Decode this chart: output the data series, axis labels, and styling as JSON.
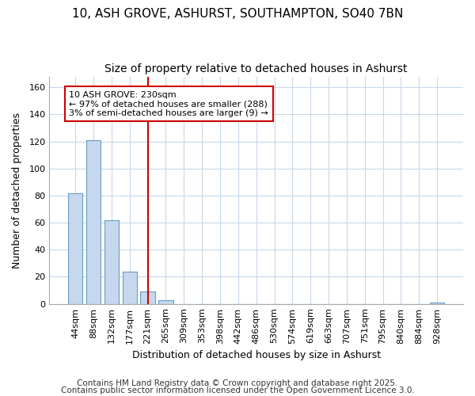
{
  "title1": "10, ASH GROVE, ASHURST, SOUTHAMPTON, SO40 7BN",
  "title2": "Size of property relative to detached houses in Ashurst",
  "xlabel": "Distribution of detached houses by size in Ashurst",
  "ylabel": "Number of detached properties",
  "categories": [
    "44sqm",
    "88sqm",
    "132sqm",
    "177sqm",
    "221sqm",
    "265sqm",
    "309sqm",
    "353sqm",
    "398sqm",
    "442sqm",
    "486sqm",
    "530sqm",
    "574sqm",
    "619sqm",
    "663sqm",
    "707sqm",
    "751sqm",
    "795sqm",
    "840sqm",
    "884sqm",
    "928sqm"
  ],
  "values": [
    82,
    121,
    62,
    24,
    9,
    3,
    0,
    0,
    0,
    0,
    0,
    0,
    0,
    0,
    0,
    0,
    0,
    0,
    0,
    0,
    1
  ],
  "bar_color": "#c5d8ed",
  "bar_edge_color": "#6a9ec5",
  "vline_x_index": 4,
  "vline_color": "#cc0000",
  "annotation_text": "10 ASH GROVE: 230sqm\n← 97% of detached houses are smaller (288)\n3% of semi-detached houses are larger (9) →",
  "annotation_box_edgecolor": "#cc0000",
  "annotation_box_facecolor": "#ffffff",
  "ylim": [
    0,
    168
  ],
  "yticks": [
    0,
    20,
    40,
    60,
    80,
    100,
    120,
    140,
    160
  ],
  "footer1": "Contains HM Land Registry data © Crown copyright and database right 2025.",
  "footer2": "Contains public sector information licensed under the Open Government Licence 3.0.",
  "bg_color": "#ffffff",
  "plot_bg_color": "#ffffff",
  "grid_color": "#c8d8ec",
  "title_fontsize": 11,
  "subtitle_fontsize": 10,
  "axis_label_fontsize": 9,
  "tick_fontsize": 8,
  "annotation_fontsize": 8,
  "footer_fontsize": 7.5
}
